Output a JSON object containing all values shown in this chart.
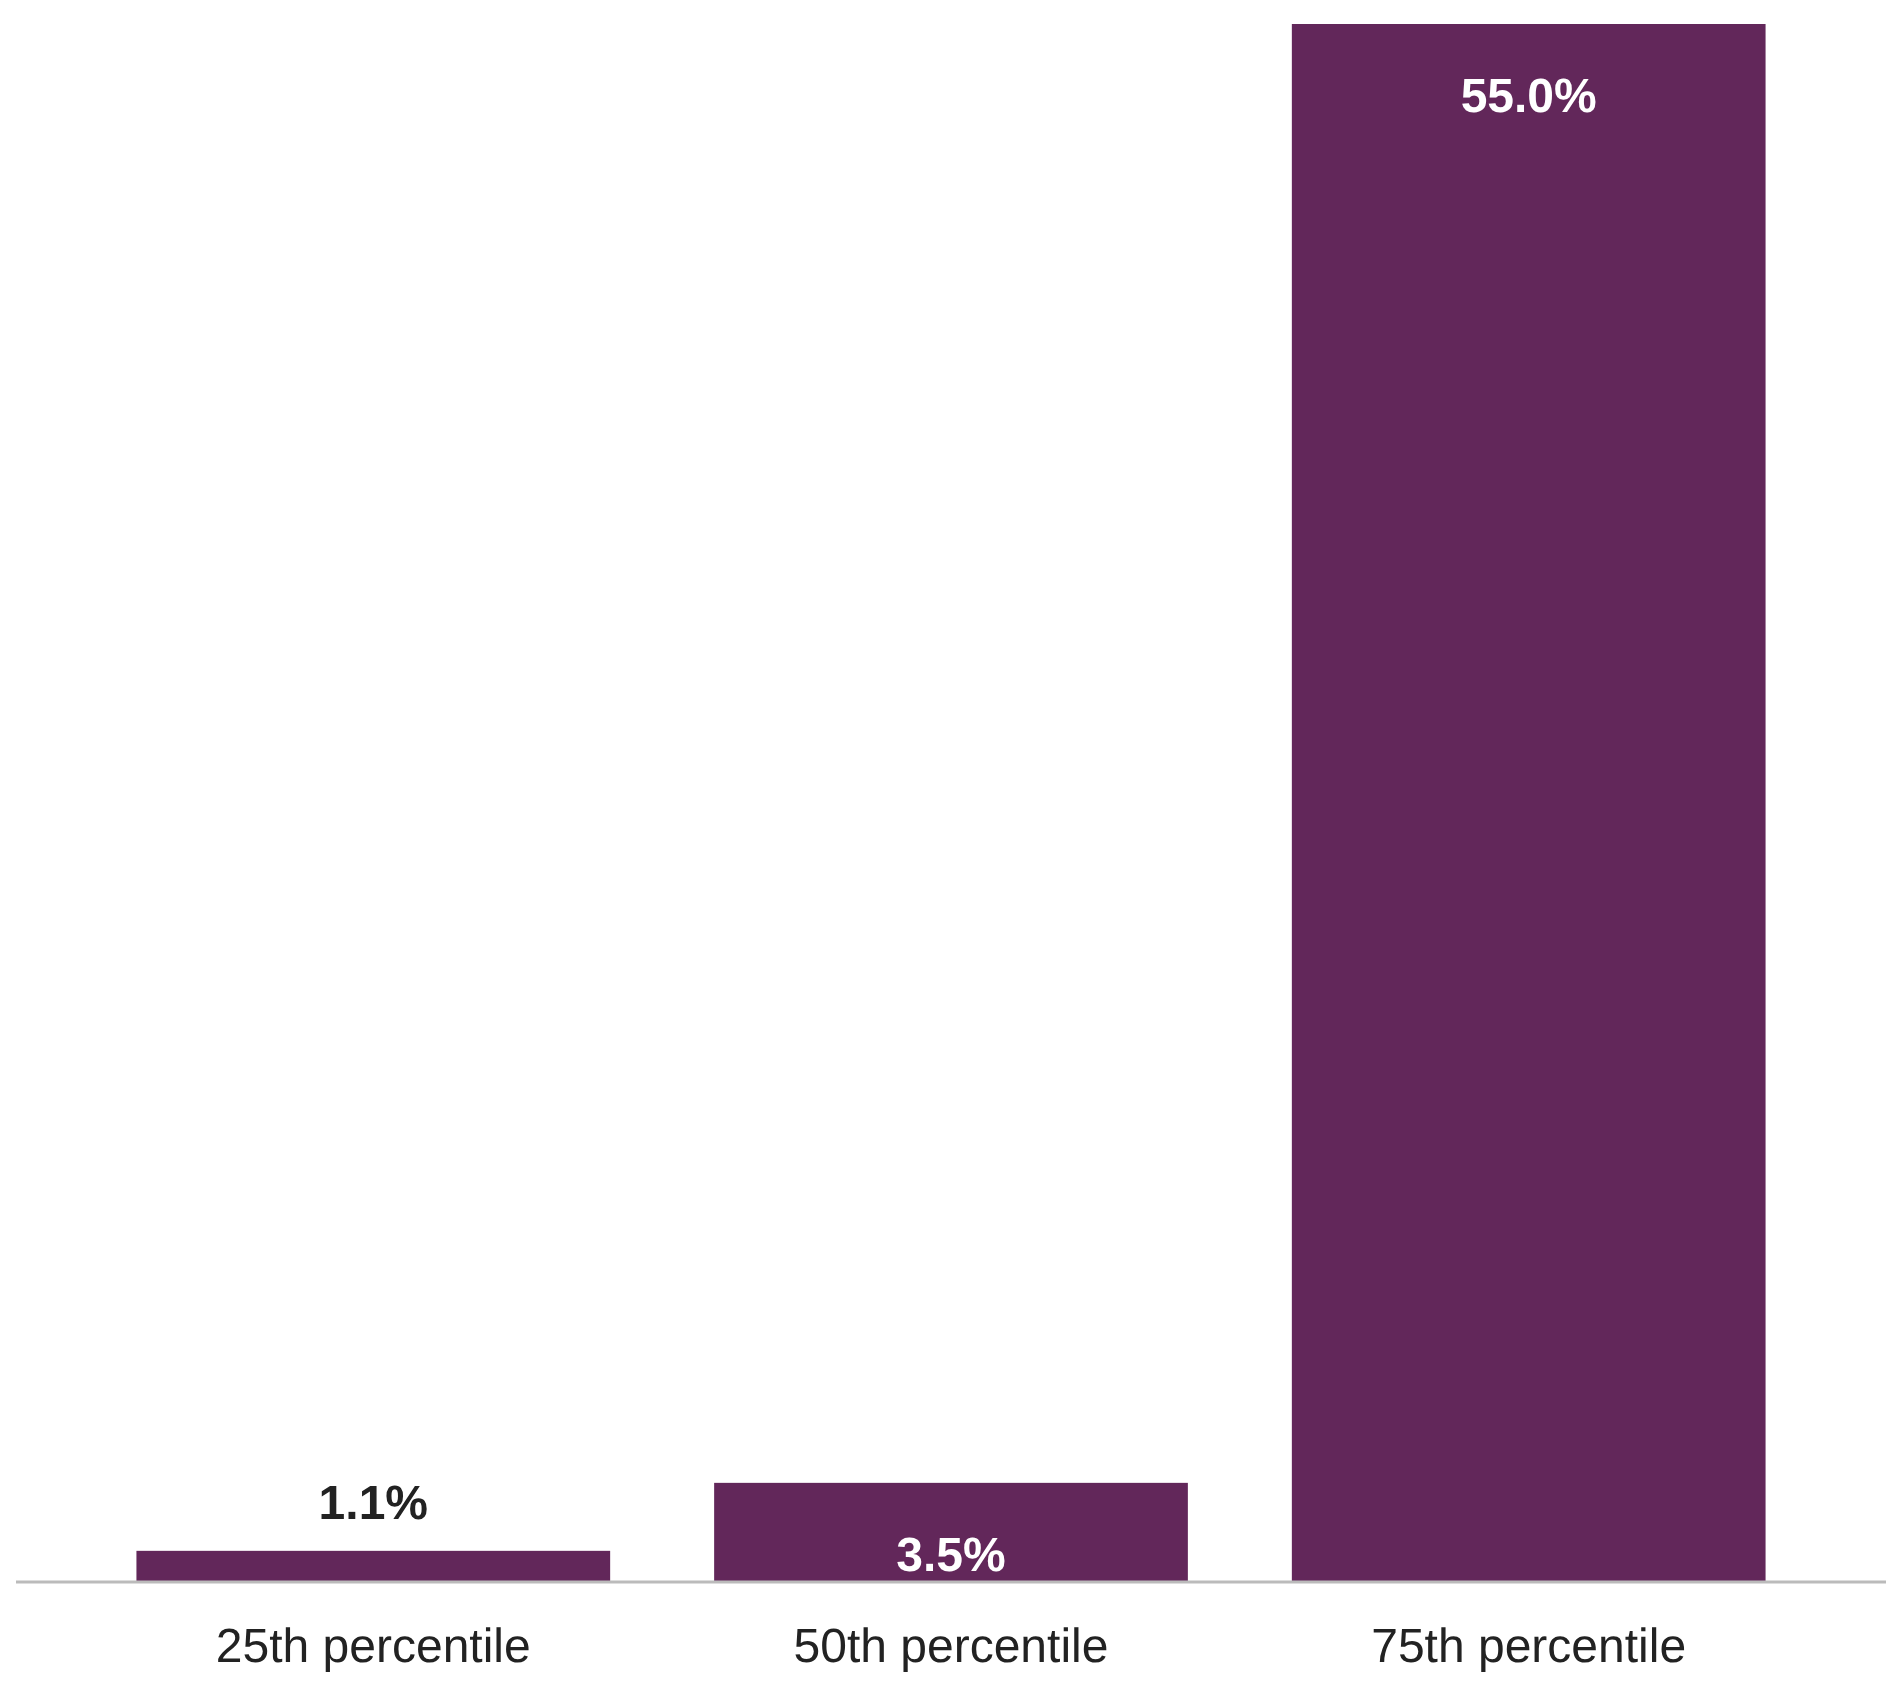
{
  "chart_data": {
    "type": "bar",
    "categories": [
      "25th percentile",
      "50th percentile",
      "75th percentile"
    ],
    "values": [
      1.1,
      3.5,
      55.0
    ],
    "value_labels": [
      "1.1%",
      "3.5%",
      "55.0%"
    ],
    "color": "#62275a"
  }
}
